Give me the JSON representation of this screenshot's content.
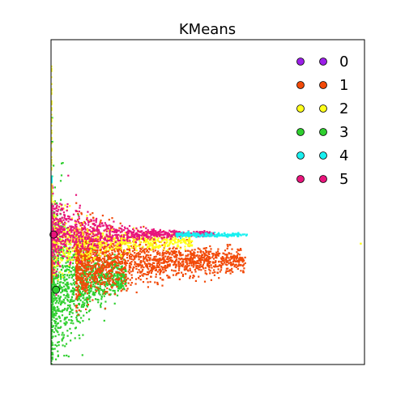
{
  "chart_data": {
    "type": "scatter",
    "title": "KMeans",
    "xlabel": "",
    "ylabel": "",
    "xlim": [
      0,
      100
    ],
    "ylim": [
      0,
      100
    ],
    "axis_ticks_visible": false,
    "grid": false,
    "legend_placement": "top-right",
    "series": [
      {
        "name": "0",
        "color": "#9b1fe8",
        "centroid": null,
        "approx_points": 0
      },
      {
        "name": "1",
        "color": "#f24a09",
        "centroid": null,
        "approx_points": 1800
      },
      {
        "name": "2",
        "color": "#ffff1a",
        "centroid": null,
        "approx_points": 700
      },
      {
        "name": "3",
        "color": "#2fcf2f",
        "centroid": [
          1.6,
          23.0
        ],
        "approx_points": 1200
      },
      {
        "name": "4",
        "color": "#18f0f0",
        "centroid": null,
        "approx_points": 200
      },
      {
        "name": "5",
        "color": "#e8157c",
        "centroid": [
          0.8,
          40.0
        ],
        "approx_points": 900
      }
    ],
    "outliers": [
      {
        "series": "2",
        "x": 98.8,
        "y": 37.2
      }
    ]
  }
}
